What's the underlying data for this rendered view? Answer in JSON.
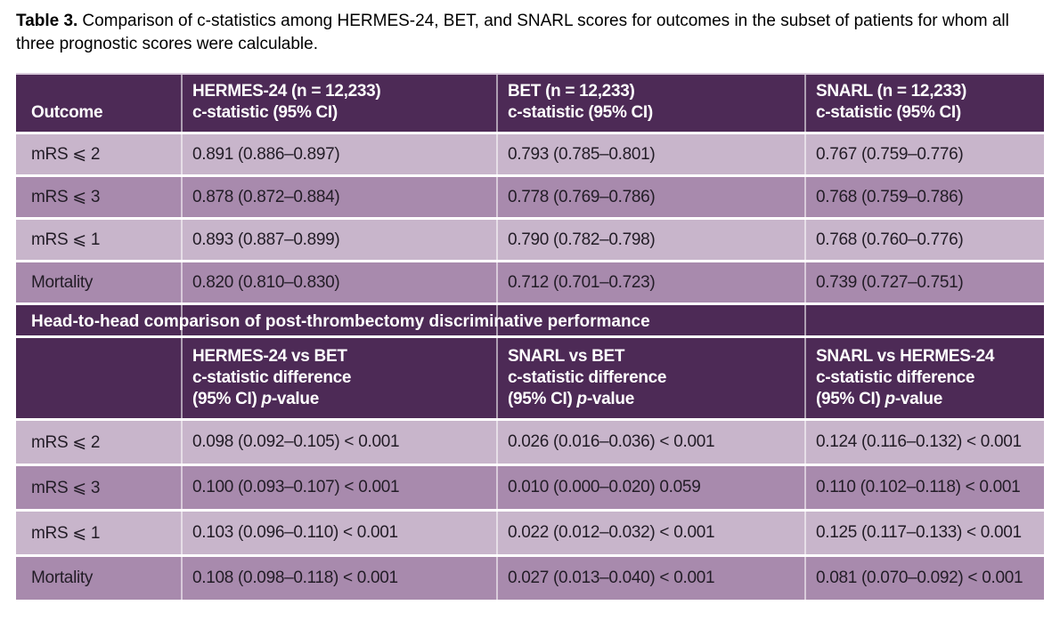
{
  "caption": {
    "label": "Table 3.",
    "text": "Comparison of c-statistics among HERMES-24, BET, and SNARL scores for outcomes in the subset of patients for whom all three prognostic scores were calculable."
  },
  "colors": {
    "header_bg": "#4d2a56",
    "row_light": "#c8b5cb",
    "row_medium": "#a88aad",
    "header_text": "#ffffff",
    "body_text": "#221c26"
  },
  "table": {
    "header": {
      "outcome": "Outcome",
      "cols": [
        {
          "l1": "HERMES-24 (n = 12,233)",
          "l2": "c-statistic (95% CI)"
        },
        {
          "l1": "BET (n = 12,233)",
          "l2": "c-statistic (95% CI)"
        },
        {
          "l1": "SNARL (n = 12,233)",
          "l2": "c-statistic (95% CI)"
        }
      ]
    },
    "rows": [
      {
        "outcome": "mRS ⩽ 2",
        "v": [
          "0.891 (0.886–0.897)",
          "0.793 (0.785–0.801)",
          "0.767 (0.759–0.776)"
        ]
      },
      {
        "outcome": "mRS ⩽ 3",
        "v": [
          "0.878 (0.872–0.884)",
          "0.778 (0.769–0.786)",
          "0.768 (0.759–0.786)"
        ]
      },
      {
        "outcome": "mRS ⩽ 1",
        "v": [
          "0.893 (0.887–0.899)",
          "0.790 (0.782–0.798)",
          "0.768 (0.760–0.776)"
        ]
      },
      {
        "outcome": "Mortality",
        "v": [
          "0.820 (0.810–0.830)",
          "0.712 (0.701–0.723)",
          "0.739 (0.727–0.751)"
        ]
      }
    ],
    "section_header": "Head-to-head comparison of post-thrombectomy discriminative performance",
    "header2": {
      "cols": [
        {
          "l1": "HERMES-24 vs BET"
        },
        {
          "l1": "SNARL vs BET"
        },
        {
          "l1": "SNARL vs HERMES-24"
        }
      ],
      "l2": "c-statistic difference",
      "l3_prefix": "(95% CI) ",
      "l3_p": "p",
      "l3_suffix": "-value"
    },
    "rows2": [
      {
        "outcome": "mRS ⩽ 2",
        "v": [
          "0.098 (0.092–0.105) < 0.001",
          "0.026 (0.016–0.036) < 0.001",
          "0.124 (0.116–0.132) < 0.001"
        ]
      },
      {
        "outcome": "mRS ⩽ 3",
        "v": [
          "0.100 (0.093–0.107) < 0.001",
          "0.010 (0.000–0.020) 0.059",
          "0.110 (0.102–0.118) < 0.001"
        ]
      },
      {
        "outcome": "mRS ⩽ 1",
        "v": [
          "0.103 (0.096–0.110) < 0.001",
          "0.022 (0.012–0.032) < 0.001",
          "0.125 (0.117–0.133) < 0.001"
        ]
      },
      {
        "outcome": "Mortality",
        "v": [
          "0.108 (0.098–0.118) < 0.001",
          "0.027 (0.013–0.040) < 0.001",
          "0.081 (0.070–0.092) < 0.001"
        ]
      }
    ]
  }
}
